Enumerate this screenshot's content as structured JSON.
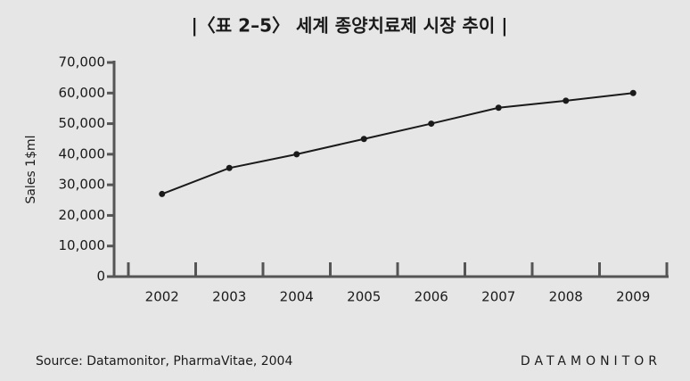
{
  "chart_data": {
    "type": "line",
    "title": "|〈표 2–5〉 세계 종양치료제 시장 추이 |",
    "y_label": "Sales 1$ml",
    "source": "Source: Datamonitor, PharmaVitae, 2004",
    "brand": "DATAMONITOR",
    "categories": [
      "2002",
      "2003",
      "2004",
      "2005",
      "2006",
      "2007",
      "2008",
      "2009"
    ],
    "series": [
      {
        "name": "Sales",
        "color": "#1a1a1a",
        "values": [
          27000,
          35500,
          40000,
          45000,
          50000,
          55200,
          57500,
          60000
        ]
      }
    ],
    "ylim": [
      0,
      70000
    ],
    "yticks": [
      0,
      {
        "value": 10000,
        "label": "10,000"
      },
      {
        "value": 20000,
        "label": "20,000"
      },
      {
        "value": 30000,
        "label": "30,000"
      },
      {
        "value": 40000,
        "label": "40,000"
      },
      {
        "value": 50000,
        "label": "50,000"
      },
      {
        "value": 60000,
        "label": "60,000"
      },
      {
        "value": 70000,
        "label": "70,000"
      }
    ],
    "grid": false
  }
}
